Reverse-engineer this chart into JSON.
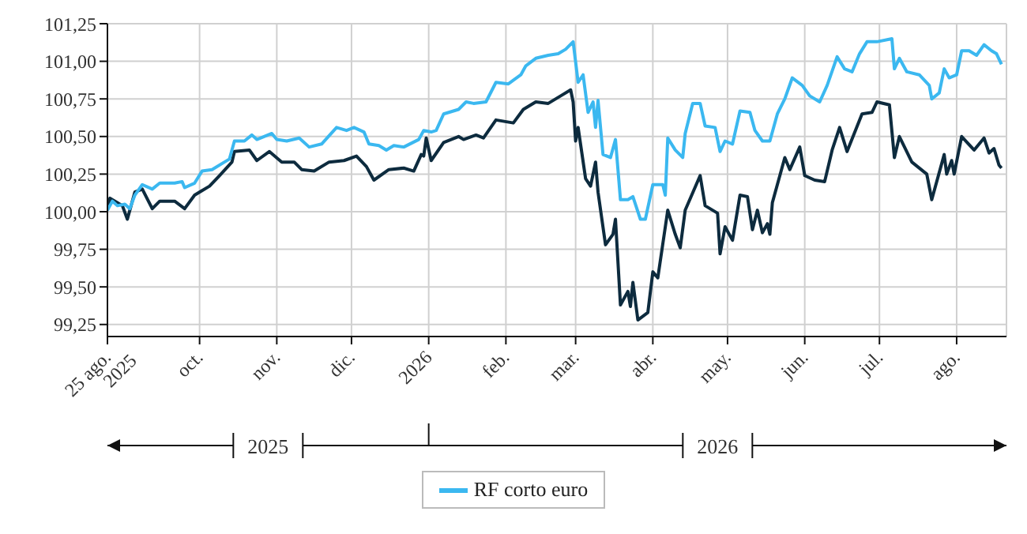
{
  "chart_data": {
    "type": "line",
    "xlim": [
      "2025-08-25",
      "2026-08-21"
    ],
    "xticks": [
      {
        "value": "2025-08-25",
        "label": "25 ago.\n2025"
      },
      {
        "value": "2025-10-01",
        "label": "oct."
      },
      {
        "value": "2025-11-01",
        "label": "nov."
      },
      {
        "value": "2025-12-01",
        "label": "dic."
      },
      {
        "value": "2026-01-01",
        "label": "2026"
      },
      {
        "value": "2026-02-01",
        "label": "feb."
      },
      {
        "value": "2026-03-01",
        "label": "mar."
      },
      {
        "value": "2026-04-01",
        "label": "abr."
      },
      {
        "value": "2026-05-01",
        "label": "may."
      },
      {
        "value": "2026-06-01",
        "label": "jun."
      },
      {
        "value": "2026-07-01",
        "label": "jul."
      },
      {
        "value": "2026-08-01",
        "label": "ago."
      }
    ],
    "ylim": [
      99.17,
      101.25
    ],
    "yticks": [
      {
        "value": 99.25,
        "label": "99,25"
      },
      {
        "value": 99.5,
        "label": "99,50"
      },
      {
        "value": 99.75,
        "label": "99,75"
      },
      {
        "value": 100,
        "label": "100,00"
      },
      {
        "value": 100.25,
        "label": "100,25"
      },
      {
        "value": 100.5,
        "label": "100,50"
      },
      {
        "value": 100.75,
        "label": "100,75"
      },
      {
        "value": 101,
        "label": "101,00"
      },
      {
        "value": 101.25,
        "label": "101,25"
      }
    ],
    "grid": true,
    "legend": "bottom",
    "marker": "none",
    "line_style": "solid",
    "annotations": [
      "2025",
      "2026"
    ],
    "series": [
      {
        "color": "#0d2b3e",
        "x": [
          "2025-08-25",
          "2025-08-26",
          "2025-08-31",
          "2025-09-02",
          "2025-09-05",
          "2025-09-08",
          "2025-09-12",
          "2025-09-15",
          "2025-09-21",
          "2025-09-25",
          "2025-09-29",
          "2025-10-05",
          "2025-10-09",
          "2025-10-14",
          "2025-10-15",
          "2025-10-21",
          "2025-10-24",
          "2025-10-29",
          "2025-11-03",
          "2025-11-08",
          "2025-11-11",
          "2025-11-16",
          "2025-11-22",
          "2025-11-28",
          "2025-12-03",
          "2025-12-07",
          "2025-12-10",
          "2025-12-16",
          "2025-12-22",
          "2025-12-26",
          "2025-12-29",
          "2025-12-30",
          "2025-12-31",
          "2026-01-02",
          "2026-01-07",
          "2026-01-13",
          "2026-01-15",
          "2026-01-20",
          "2026-01-23",
          "2026-01-28",
          "2026-02-04",
          "2026-02-08",
          "2026-02-13",
          "2026-02-18",
          "2026-02-23",
          "2026-02-27",
          "2026-02-28",
          "2026-03-01",
          "2026-03-02",
          "2026-03-05",
          "2026-03-07",
          "2026-03-09",
          "2026-03-10",
          "2026-03-13",
          "2026-03-16",
          "2026-03-17",
          "2026-03-19",
          "2026-03-22",
          "2026-03-23",
          "2026-03-24",
          "2026-03-26",
          "2026-03-30",
          "2026-04-01",
          "2026-04-03",
          "2026-04-07",
          "2026-04-10",
          "2026-04-12",
          "2026-04-14",
          "2026-04-20",
          "2026-04-22",
          "2026-04-27",
          "2026-04-28",
          "2026-04-30",
          "2026-05-03",
          "2026-05-06",
          "2026-05-09",
          "2026-05-11",
          "2026-05-13",
          "2026-05-15",
          "2026-05-17",
          "2026-05-18",
          "2026-05-19",
          "2026-05-24",
          "2026-05-26",
          "2026-05-30",
          "2026-06-01",
          "2026-06-05",
          "2026-06-09",
          "2026-06-12",
          "2026-06-15",
          "2026-06-18",
          "2026-06-24",
          "2026-06-28",
          "2026-06-30",
          "2026-07-05",
          "2026-07-07",
          "2026-07-09",
          "2026-07-14",
          "2026-07-20",
          "2026-07-22",
          "2026-07-27",
          "2026-07-28",
          "2026-07-30",
          "2026-07-31",
          "2026-08-03",
          "2026-08-08",
          "2026-08-12",
          "2026-08-14",
          "2026-08-16",
          "2026-08-18",
          "2026-08-19"
        ],
        "values": [
          100.01,
          100.09,
          100.04,
          99.95,
          100.13,
          100.15,
          100.02,
          100.07,
          100.07,
          100.02,
          100.11,
          100.17,
          100.24,
          100.33,
          100.4,
          100.41,
          100.34,
          100.4,
          100.33,
          100.33,
          100.28,
          100.27,
          100.33,
          100.34,
          100.37,
          100.3,
          100.21,
          100.28,
          100.29,
          100.27,
          100.38,
          100.37,
          100.49,
          100.34,
          100.46,
          100.5,
          100.48,
          100.51,
          100.49,
          100.61,
          100.59,
          100.68,
          100.73,
          100.72,
          100.77,
          100.81,
          100.73,
          100.47,
          100.56,
          100.22,
          100.17,
          100.33,
          100.13,
          99.78,
          99.85,
          99.95,
          99.38,
          99.47,
          99.37,
          99.53,
          99.28,
          99.33,
          99.6,
          99.56,
          100.01,
          99.85,
          99.76,
          100.01,
          100.24,
          100.04,
          99.99,
          99.72,
          99.9,
          99.81,
          100.11,
          100.1,
          99.88,
          100.01,
          99.86,
          99.92,
          99.85,
          100.06,
          100.36,
          100.28,
          100.43,
          100.24,
          100.21,
          100.2,
          100.41,
          100.56,
          100.4,
          100.65,
          100.66,
          100.73,
          100.71,
          100.36,
          100.5,
          100.33,
          100.25,
          100.08,
          100.38,
          100.25,
          100.34,
          100.25,
          100.5,
          100.41,
          100.49,
          100.39,
          100.42,
          100.31,
          100.29
        ]
      },
      {
        "name": "RF corto euro",
        "color": "#3bb8f0",
        "x": [
          "2025-08-25",
          "2025-08-27",
          "2025-08-29",
          "2025-09-01",
          "2025-09-03",
          "2025-09-05",
          "2025-09-08",
          "2025-09-12",
          "2025-09-15",
          "2025-09-21",
          "2025-09-24",
          "2025-09-25",
          "2025-09-29",
          "2025-10-02",
          "2025-10-06",
          "2025-10-11",
          "2025-10-13",
          "2025-10-15",
          "2025-10-19",
          "2025-10-22",
          "2025-10-24",
          "2025-10-30",
          "2025-11-01",
          "2025-11-05",
          "2025-11-10",
          "2025-11-14",
          "2025-11-19",
          "2025-11-25",
          "2025-11-29",
          "2025-12-02",
          "2025-12-06",
          "2025-12-08",
          "2025-12-12",
          "2025-12-15",
          "2025-12-18",
          "2025-12-22",
          "2025-12-28",
          "2025-12-30",
          "2026-01-02",
          "2026-01-04",
          "2026-01-07",
          "2026-01-13",
          "2026-01-16",
          "2026-01-19",
          "2026-01-24",
          "2026-01-28",
          "2026-02-02",
          "2026-02-07",
          "2026-02-09",
          "2026-02-13",
          "2026-02-18",
          "2026-02-22",
          "2026-02-25",
          "2026-02-28",
          "2026-03-02",
          "2026-03-04",
          "2026-03-06",
          "2026-03-08",
          "2026-03-09",
          "2026-03-10",
          "2026-03-12",
          "2026-03-15",
          "2026-03-17",
          "2026-03-19",
          "2026-03-22",
          "2026-03-24",
          "2026-03-27",
          "2026-03-29",
          "2026-04-01",
          "2026-04-05",
          "2026-04-06",
          "2026-04-07",
          "2026-04-10",
          "2026-04-13",
          "2026-04-14",
          "2026-04-17",
          "2026-04-20",
          "2026-04-22",
          "2026-04-26",
          "2026-04-28",
          "2026-04-30",
          "2026-05-03",
          "2026-05-06",
          "2026-05-10",
          "2026-05-12",
          "2026-05-15",
          "2026-05-18",
          "2026-05-21",
          "2026-05-24",
          "2026-05-27",
          "2026-05-31",
          "2026-06-03",
          "2026-06-07",
          "2026-06-10",
          "2026-06-14",
          "2026-06-17",
          "2026-06-20",
          "2026-06-23",
          "2026-06-26",
          "2026-06-30",
          "2026-07-06",
          "2026-07-07",
          "2026-07-09",
          "2026-07-12",
          "2026-07-17",
          "2026-07-21",
          "2026-07-22",
          "2026-07-25",
          "2026-07-27",
          "2026-07-29",
          "2026-08-01",
          "2026-08-03",
          "2026-08-06",
          "2026-08-09",
          "2026-08-12",
          "2026-08-15",
          "2026-08-17",
          "2026-08-19"
        ],
        "values": [
          100.01,
          100.07,
          100.04,
          100.05,
          100.02,
          100.11,
          100.18,
          100.15,
          100.19,
          100.19,
          100.2,
          100.16,
          100.19,
          100.27,
          100.28,
          100.33,
          100.35,
          100.47,
          100.47,
          100.51,
          100.48,
          100.52,
          100.48,
          100.47,
          100.49,
          100.43,
          100.45,
          100.56,
          100.54,
          100.56,
          100.53,
          100.45,
          100.44,
          100.41,
          100.44,
          100.43,
          100.48,
          100.54,
          100.53,
          100.54,
          100.65,
          100.68,
          100.73,
          100.72,
          100.73,
          100.86,
          100.85,
          100.91,
          100.97,
          101.02,
          101.04,
          101.05,
          101.08,
          101.13,
          100.86,
          100.91,
          100.66,
          100.73,
          100.56,
          100.74,
          100.38,
          100.36,
          100.48,
          100.08,
          100.08,
          100.1,
          99.95,
          99.95,
          100.18,
          100.18,
          100.11,
          100.49,
          100.41,
          100.36,
          100.52,
          100.72,
          100.72,
          100.57,
          100.56,
          100.4,
          100.47,
          100.45,
          100.67,
          100.66,
          100.54,
          100.47,
          100.47,
          100.65,
          100.75,
          100.89,
          100.84,
          100.77,
          100.73,
          100.84,
          101.03,
          100.95,
          100.93,
          101.05,
          101.13,
          101.13,
          101.15,
          100.95,
          101.02,
          100.93,
          100.91,
          100.84,
          100.75,
          100.79,
          100.95,
          100.89,
          100.91,
          101.07,
          101.07,
          101.04,
          101.11,
          101.07,
          101.05,
          100.98
        ]
      }
    ]
  }
}
